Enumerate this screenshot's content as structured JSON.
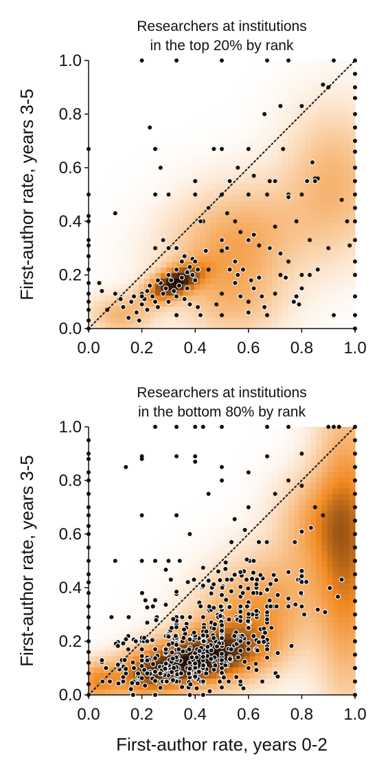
{
  "chart_data": [
    {
      "type": "scatter",
      "title": "Researchers at institutions\nin the top 20% by rank",
      "xlabel": "",
      "ylabel": "First-author rate, years 3-5",
      "xlim": [
        0,
        1
      ],
      "ylim": [
        0,
        1
      ],
      "xticks": [
        "0.0",
        "0.2",
        "0.4",
        "0.6",
        "0.8",
        "1.0"
      ],
      "yticks": [
        "0.0",
        "0.2",
        "0.4",
        "0.6",
        "0.8",
        "1.0"
      ],
      "background": "orange density (kde) heatmap",
      "diagonal": "dotted y = x reference line",
      "density_centers": [
        {
          "x": 0.32,
          "y": 0.17,
          "wx": 0.07,
          "wy": 0.045,
          "w": 1.2,
          "rho": 0.55
        },
        {
          "x": 0.55,
          "y": 0.32,
          "wx": 0.17,
          "wy": 0.14,
          "w": 0.45,
          "rho": 0.2
        },
        {
          "x": 0.92,
          "y": 0.55,
          "wx": 0.12,
          "wy": 0.18,
          "w": 0.35,
          "rho": 0
        },
        {
          "x": 0.12,
          "y": 0.05,
          "wx": 0.08,
          "wy": 0.05,
          "w": 0.35,
          "rho": 0
        },
        {
          "x": 0.55,
          "y": 0.1,
          "wx": 0.12,
          "wy": 0.1,
          "w": 0.25,
          "rho": 0
        }
      ],
      "points_white_outline": [
        [
          0.1,
          0.13
        ],
        [
          0.12,
          0.11
        ],
        [
          0.13,
          0.08
        ],
        [
          0.15,
          0.04
        ],
        [
          0.16,
          0.1
        ],
        [
          0.17,
          0.12
        ],
        [
          0.18,
          0.06
        ],
        [
          0.19,
          0.03
        ],
        [
          0.2,
          0.13
        ],
        [
          0.2,
          0.09
        ],
        [
          0.21,
          0.11
        ],
        [
          0.22,
          0.07
        ],
        [
          0.22,
          0.14
        ],
        [
          0.23,
          0.16
        ],
        [
          0.24,
          0.12
        ],
        [
          0.25,
          0.1
        ],
        [
          0.26,
          0.08
        ],
        [
          0.27,
          0.17
        ],
        [
          0.28,
          0.13
        ],
        [
          0.29,
          0.15
        ],
        [
          0.3,
          0.1
        ],
        [
          0.3,
          0.2
        ],
        [
          0.31,
          0.18
        ],
        [
          0.32,
          0.14
        ],
        [
          0.33,
          0.12
        ],
        [
          0.33,
          0.22
        ],
        [
          0.34,
          0.16
        ],
        [
          0.35,
          0.19
        ],
        [
          0.35,
          0.25
        ],
        [
          0.36,
          0.11
        ],
        [
          0.37,
          0.21
        ],
        [
          0.37,
          0.15
        ],
        [
          0.38,
          0.23
        ],
        [
          0.38,
          0.09
        ],
        [
          0.39,
          0.2
        ],
        [
          0.39,
          0.26
        ],
        [
          0.4,
          0.18
        ],
        [
          0.4,
          0.25
        ],
        [
          0.41,
          0.08
        ],
        [
          0.41,
          0.22
        ],
        [
          0.42,
          0.05
        ],
        [
          0.28,
          0.33
        ],
        [
          0.3,
          0.3
        ],
        [
          0.33,
          0.3
        ],
        [
          0.36,
          0.27
        ],
        [
          0.44,
          0.29
        ],
        [
          0.2,
          0.12
        ],
        [
          0.26,
          0.18
        ],
        [
          0.45,
          0.45
        ],
        [
          0.42,
          0.4
        ],
        [
          0.5,
          0.33
        ],
        [
          0.52,
          0.3
        ],
        [
          0.53,
          0.22
        ],
        [
          0.55,
          0.25
        ],
        [
          0.56,
          0.2
        ],
        [
          0.57,
          0.12
        ],
        [
          0.58,
          0.22
        ],
        [
          0.6,
          0.33
        ],
        [
          0.61,
          0.18
        ],
        [
          0.62,
          0.15
        ],
        [
          0.64,
          0.19
        ],
        [
          0.65,
          0.12
        ],
        [
          0.66,
          0.08
        ],
        [
          0.68,
          0.3
        ],
        [
          0.7,
          0.55
        ],
        [
          0.72,
          0.28
        ],
        [
          0.74,
          0.19
        ],
        [
          0.75,
          0.49
        ],
        [
          0.77,
          0.1
        ],
        [
          0.78,
          0.12
        ],
        [
          0.8,
          0.15
        ],
        [
          0.82,
          0.55
        ],
        [
          0.84,
          0.62
        ],
        [
          0.85,
          0.55
        ],
        [
          0.86,
          0.22
        ],
        [
          0.53,
          0.55
        ],
        [
          0.55,
          0.17
        ],
        [
          0.6,
          0.06
        ],
        [
          0.62,
          0.35
        ]
      ],
      "points_dark": [
        [
          0.0,
          0.0
        ],
        [
          0.0,
          0.03
        ],
        [
          0.0,
          0.07
        ],
        [
          0.0,
          0.1
        ],
        [
          0.0,
          0.13
        ],
        [
          0.0,
          0.17
        ],
        [
          0.0,
          0.22
        ],
        [
          0.0,
          0.27
        ],
        [
          0.0,
          0.31
        ],
        [
          0.0,
          0.33
        ],
        [
          0.0,
          0.4
        ],
        [
          0.0,
          0.42
        ],
        [
          0.0,
          0.5
        ],
        [
          0.0,
          0.67
        ],
        [
          0.04,
          0.17
        ],
        [
          0.05,
          0.14
        ],
        [
          0.07,
          0.07
        ],
        [
          0.1,
          0.43
        ],
        [
          0.2,
          1.0
        ],
        [
          0.23,
          0.75
        ],
        [
          0.25,
          0.67
        ],
        [
          0.27,
          0.6
        ],
        [
          0.25,
          0.5
        ],
        [
          0.25,
          0.3
        ],
        [
          0.3,
          0.5
        ],
        [
          0.33,
          1.0
        ],
        [
          0.33,
          0.05
        ],
        [
          0.4,
          0.5
        ],
        [
          0.4,
          0.55
        ],
        [
          0.43,
          0.4
        ],
        [
          0.45,
          0.22
        ],
        [
          0.47,
          0.67
        ],
        [
          0.5,
          0.33
        ],
        [
          0.5,
          0.5
        ],
        [
          0.5,
          0.67
        ],
        [
          0.5,
          1.0
        ],
        [
          0.5,
          0.05
        ],
        [
          0.5,
          0.13
        ],
        [
          0.5,
          0.29
        ],
        [
          0.52,
          0.43
        ],
        [
          0.55,
          0.4
        ],
        [
          0.57,
          0.36
        ],
        [
          0.6,
          0.67
        ],
        [
          0.6,
          0.5
        ],
        [
          0.62,
          0.57
        ],
        [
          0.64,
          0.31
        ],
        [
          0.66,
          0.8
        ],
        [
          0.67,
          1.0
        ],
        [
          0.67,
          0.05
        ],
        [
          0.67,
          0.5
        ],
        [
          0.7,
          0.13
        ],
        [
          0.7,
          0.38
        ],
        [
          0.72,
          0.83
        ],
        [
          0.73,
          0.67
        ],
        [
          0.75,
          1.0
        ],
        [
          0.75,
          0.25
        ],
        [
          0.75,
          0.5
        ],
        [
          0.78,
          0.4
        ],
        [
          0.79,
          0.09
        ],
        [
          0.8,
          0.83
        ],
        [
          0.8,
          0.2
        ],
        [
          0.8,
          0.5
        ],
        [
          0.82,
          0.55
        ],
        [
          0.83,
          0.2
        ],
        [
          0.83,
          0.33
        ],
        [
          0.85,
          0.56
        ],
        [
          0.86,
          0.56
        ],
        [
          0.88,
          0.91
        ],
        [
          0.9,
          0.9
        ],
        [
          0.9,
          0.3
        ],
        [
          0.92,
          1.0
        ],
        [
          0.92,
          0.05
        ],
        [
          0.95,
          0.48
        ],
        [
          0.97,
          0.4
        ],
        [
          0.98,
          0.31
        ],
        [
          0.72,
          0.2
        ],
        [
          0.68,
          0.55
        ],
        [
          0.6,
          0.1
        ],
        [
          0.56,
          0.6
        ],
        [
          0.48,
          0.09
        ],
        [
          1.0,
          0.0
        ],
        [
          1.0,
          0.05
        ],
        [
          1.0,
          0.12
        ],
        [
          1.0,
          0.2
        ],
        [
          1.0,
          0.25
        ],
        [
          1.0,
          0.33
        ],
        [
          1.0,
          0.4
        ],
        [
          1.0,
          0.45
        ],
        [
          1.0,
          0.5
        ],
        [
          1.0,
          0.55
        ],
        [
          1.0,
          0.6
        ],
        [
          1.0,
          0.66
        ],
        [
          1.0,
          0.7
        ],
        [
          1.0,
          0.75
        ],
        [
          1.0,
          0.8
        ],
        [
          1.0,
          0.86
        ],
        [
          1.0,
          0.9
        ],
        [
          1.0,
          0.95
        ],
        [
          1.0,
          1.0
        ]
      ]
    },
    {
      "type": "scatter",
      "title": "Researchers at institutions\nin the bottom 80% by rank",
      "xlabel": "First-author rate, years 0-2",
      "ylabel": "First-author rate, years 3-5",
      "xlim": [
        0,
        1
      ],
      "ylim": [
        0,
        1
      ],
      "xticks": [
        "0.0",
        "0.2",
        "0.4",
        "0.6",
        "0.8",
        "1.0"
      ],
      "yticks": [
        "0.0",
        "0.2",
        "0.4",
        "0.6",
        "0.8",
        "1.0"
      ],
      "background": "orange density (kde) heatmap",
      "diagonal": "dotted y = x reference line",
      "density_centers": [
        {
          "x": 0.43,
          "y": 0.14,
          "wx": 0.14,
          "wy": 0.07,
          "w": 1.05,
          "rho": 0.3
        },
        {
          "x": 0.22,
          "y": 0.08,
          "wx": 0.1,
          "wy": 0.06,
          "w": 0.7,
          "rho": 0.2
        },
        {
          "x": 0.62,
          "y": 0.3,
          "wx": 0.16,
          "wy": 0.15,
          "w": 0.55,
          "rho": 0.35
        },
        {
          "x": 0.97,
          "y": 0.55,
          "wx": 0.08,
          "wy": 0.35,
          "w": 0.7,
          "rho": 0
        },
        {
          "x": 0.85,
          "y": 0.65,
          "wx": 0.1,
          "wy": 0.12,
          "w": 0.35,
          "rho": 0
        },
        {
          "x": 0.03,
          "y": 0.05,
          "wx": 0.05,
          "wy": 0.05,
          "w": 0.5,
          "rho": 0
        }
      ],
      "cloud": {
        "n": 560,
        "seed": 7,
        "center": [
          0.42,
          0.18
        ],
        "spread": [
          0.2,
          0.12
        ],
        "slope": 0.55
      },
      "points_dark": [
        [
          0.0,
          0.0
        ],
        [
          0.0,
          0.04
        ],
        [
          0.0,
          0.08
        ],
        [
          0.0,
          0.12
        ],
        [
          0.0,
          0.16
        ],
        [
          0.0,
          0.2
        ],
        [
          0.0,
          0.25
        ],
        [
          0.0,
          0.29
        ],
        [
          0.0,
          0.33
        ],
        [
          0.0,
          0.38
        ],
        [
          0.0,
          0.42
        ],
        [
          0.0,
          0.45
        ],
        [
          0.0,
          0.5
        ],
        [
          0.0,
          0.55
        ],
        [
          0.0,
          0.6
        ],
        [
          0.0,
          0.63
        ],
        [
          0.0,
          0.67
        ],
        [
          0.0,
          0.7
        ],
        [
          0.0,
          0.75
        ],
        [
          0.0,
          0.8
        ],
        [
          0.0,
          0.83
        ],
        [
          0.0,
          0.88
        ],
        [
          0.0,
          0.9
        ],
        [
          0.0,
          0.95
        ],
        [
          0.14,
          0.85
        ],
        [
          0.2,
          0.88
        ],
        [
          0.2,
          0.89
        ],
        [
          0.2,
          0.67
        ],
        [
          0.25,
          0.5
        ],
        [
          0.33,
          0.89
        ],
        [
          0.33,
          1.0
        ],
        [
          0.25,
          1.0
        ],
        [
          0.4,
          0.89
        ],
        [
          0.4,
          0.87
        ],
        [
          0.4,
          1.0
        ],
        [
          0.43,
          1.0
        ],
        [
          0.5,
          1.0
        ],
        [
          0.5,
          0.8
        ],
        [
          0.5,
          0.85
        ],
        [
          0.6,
          0.83
        ],
        [
          0.67,
          0.89
        ],
        [
          0.67,
          1.0
        ],
        [
          0.75,
          1.0
        ],
        [
          0.8,
          0.9
        ],
        [
          0.9,
          1.0
        ],
        [
          0.92,
          1.0
        ],
        [
          0.94,
          1.0
        ],
        [
          0.1,
          0.5
        ],
        [
          0.2,
          0.5
        ],
        [
          0.3,
          0.5
        ],
        [
          0.33,
          0.67
        ],
        [
          0.38,
          0.6
        ],
        [
          0.45,
          0.75
        ],
        [
          0.6,
          0.7
        ],
        [
          0.7,
          0.75
        ],
        [
          0.75,
          0.8
        ],
        [
          0.8,
          0.78
        ],
        [
          0.85,
          0.7
        ],
        [
          0.88,
          0.67
        ],
        [
          1.0,
          0.0
        ],
        [
          1.0,
          0.05
        ],
        [
          1.0,
          0.1
        ],
        [
          1.0,
          0.15
        ],
        [
          1.0,
          0.2
        ],
        [
          1.0,
          0.25
        ],
        [
          1.0,
          0.3
        ],
        [
          1.0,
          0.35
        ],
        [
          1.0,
          0.4
        ],
        [
          1.0,
          0.45
        ],
        [
          1.0,
          0.5
        ],
        [
          1.0,
          0.55
        ],
        [
          1.0,
          0.6
        ],
        [
          1.0,
          0.65
        ],
        [
          1.0,
          0.7
        ],
        [
          1.0,
          0.75
        ],
        [
          1.0,
          0.8
        ],
        [
          1.0,
          0.85
        ],
        [
          1.0,
          0.9
        ],
        [
          1.0,
          0.95
        ],
        [
          1.0,
          1.0
        ]
      ]
    }
  ],
  "colors": {
    "heat_low": "#ffffff",
    "heat_mid": "#f28a22",
    "heat_high": "#160702",
    "marker_dark": "#111111",
    "marker_outline": "#ffffff",
    "diagonal": "#222222"
  }
}
